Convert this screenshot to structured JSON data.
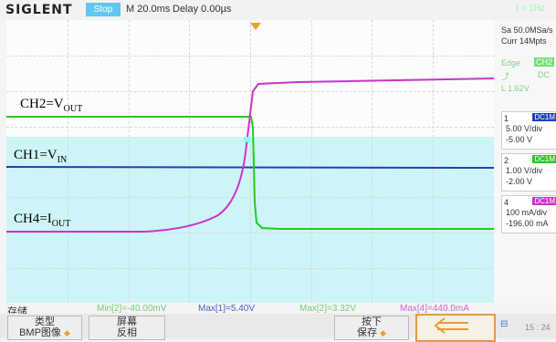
{
  "header": {
    "brand": "SIGLENT",
    "run_state": "Stop",
    "timebase": "M 20.0ms",
    "delay": "Delay 0.00µs",
    "freq": "f < 1Hz"
  },
  "acquisition": {
    "sample_rate": "Sa 50.0MSa/s",
    "memory": "Curr 14Mpts"
  },
  "trigger": {
    "mode": "Edge",
    "source": "CH2",
    "coupling": "DC",
    "level": "L 1.62V"
  },
  "channels": [
    {
      "num": "1",
      "coupling": "DC1M",
      "scale": "5.00 V/div",
      "offset": "-5.00 V",
      "color": "#1f3fbf"
    },
    {
      "num": "2",
      "coupling": "DC1M",
      "scale": "1.00 V/div",
      "offset": "-2.00 V",
      "color": "#22cc22"
    },
    {
      "num": "4",
      "coupling": "DC1M",
      "scale": "100 mA/div",
      "offset": "-196.00 mA",
      "color": "#cc33cc"
    }
  ],
  "waveform_labels": {
    "ch2": {
      "main": "CH2=V",
      "sub": "OUT"
    },
    "ch1": {
      "main": "CH1=V",
      "sub": "IN"
    },
    "ch4": {
      "main": "CH4=I",
      "sub": "OUT"
    }
  },
  "measurements": {
    "storage_label": "存储",
    "min2": "Min[2]=-40.00mV",
    "max1": "Max[1]=5.40V",
    "max2": "Max[2]=3.32V",
    "max4": "Max[4]=440.0mA"
  },
  "softkeys": {
    "type_label": "类型",
    "type_value": "BMP图像",
    "screen_label": "屏幕",
    "screen_value": "反相",
    "press_label": "按下",
    "press_value": "保存",
    "clock": "15 : 24"
  }
}
